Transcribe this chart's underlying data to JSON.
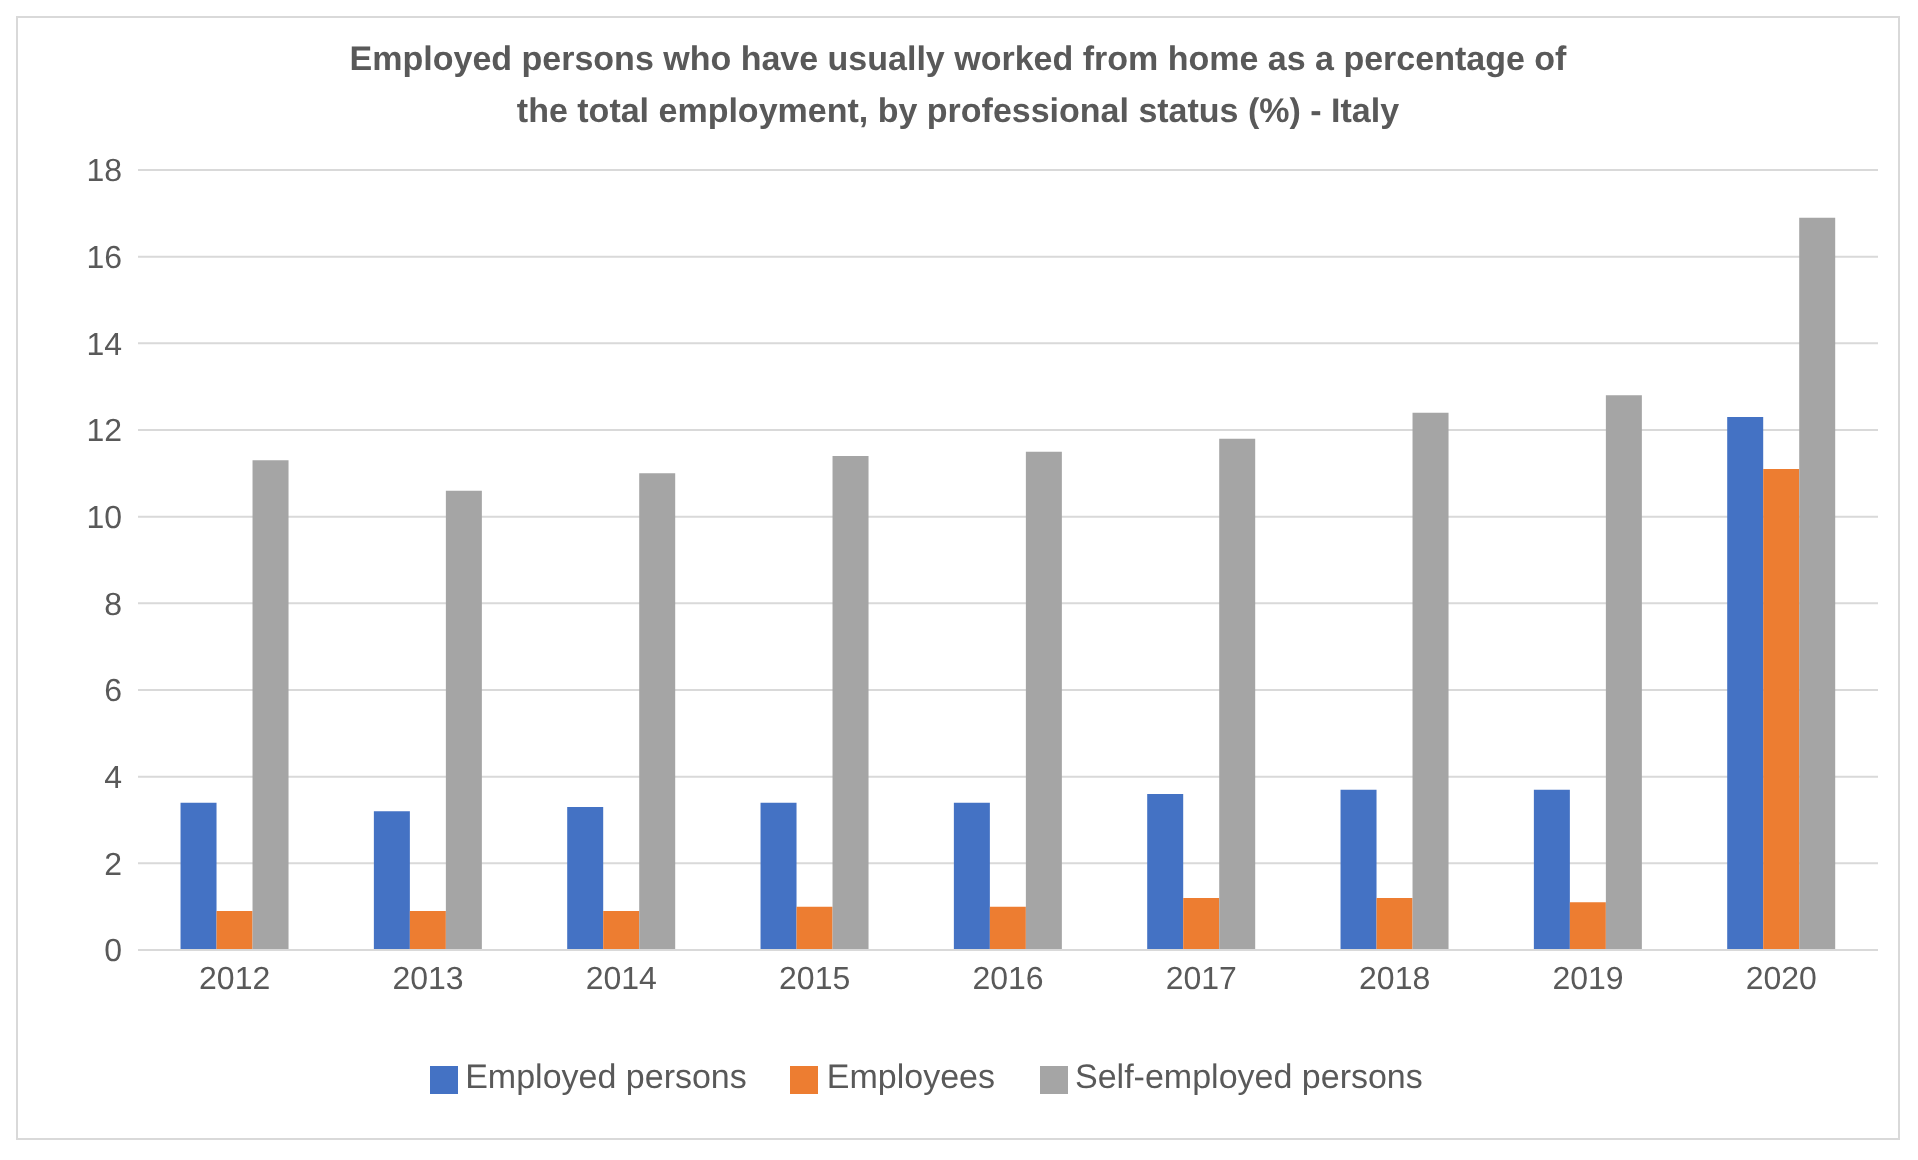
{
  "chart_data": {
    "type": "bar",
    "title": "Employed persons who have usually worked from home as a percentage of\nthe total employment, by professional status (%) - Italy",
    "categories": [
      "2012",
      "2013",
      "2014",
      "2015",
      "2016",
      "2017",
      "2018",
      "2019",
      "2020"
    ],
    "series": [
      {
        "name": "Employed persons",
        "color": "#4472c4",
        "values": [
          3.4,
          3.2,
          3.3,
          3.4,
          3.4,
          3.6,
          3.7,
          3.7,
          12.3
        ]
      },
      {
        "name": "Employees",
        "color": "#ed7d31",
        "values": [
          0.9,
          0.9,
          0.9,
          1.0,
          1.0,
          1.2,
          1.2,
          1.1,
          11.1
        ]
      },
      {
        "name": "Self-employed persons",
        "color": "#a5a5a5",
        "values": [
          11.3,
          10.6,
          11.0,
          11.4,
          11.5,
          11.8,
          12.4,
          12.8,
          16.9
        ]
      }
    ],
    "ylim": [
      0,
      18
    ],
    "yticks": [
      0,
      2,
      4,
      6,
      8,
      10,
      12,
      14,
      16,
      18
    ],
    "grid": "y",
    "legend": "bottom"
  }
}
